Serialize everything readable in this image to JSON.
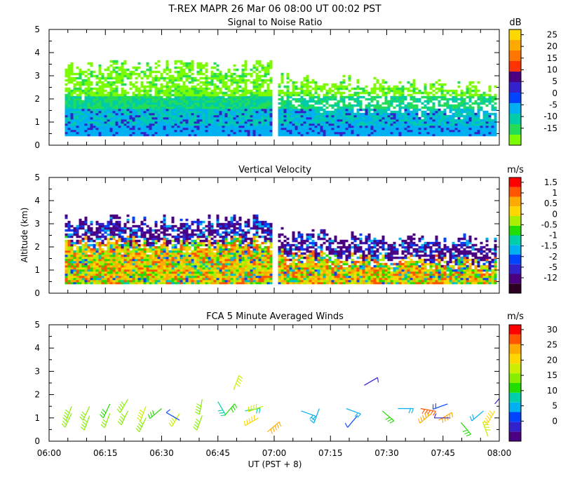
{
  "figure": {
    "title": "T-REX   MAPR 26 Mar 06   08:00 UT   00:02   PST",
    "xlabel": "UT  (PST + 8)",
    "ylabel": "Altitude (km)"
  },
  "colors": {
    "background": "#ffffff",
    "axis": "#000000"
  },
  "chart_data": [
    {
      "type": "heatmap",
      "title": "Signal to Noise Ratio",
      "unit": "dB",
      "ylim": [
        0,
        5
      ],
      "yticks": [
        "0",
        "1",
        "2",
        "3",
        "4",
        "5"
      ],
      "x_range": [
        "06:00",
        "08:00"
      ],
      "data_gap": [
        "06:59",
        "07:01"
      ],
      "colorbar": {
        "labels": [
          "-15",
          "-10",
          "-5",
          "0",
          "5",
          "10",
          "15",
          "20",
          "25"
        ],
        "colors": [
          "#7cfc00",
          "#22dd55",
          "#00ccaa",
          "#00b0f0",
          "#0044ff",
          "#3322cc",
          "#4b0082",
          "#ff3300",
          "#ff7700",
          "#ffaa00",
          "#ffd700"
        ]
      }
    },
    {
      "type": "heatmap",
      "title": "Vertical Velocity",
      "unit": "m/s",
      "ylim": [
        0,
        5
      ],
      "yticks": [
        "0",
        "1",
        "2",
        "3",
        "4",
        "5"
      ],
      "x_range": [
        "06:00",
        "08:00"
      ],
      "data_gap": [
        "06:59",
        "07:01"
      ],
      "colorbar": {
        "labels": [
          "-12",
          "-5",
          "-2",
          "-1.5",
          "-1",
          "-0.5",
          "0",
          "0.5",
          "1",
          "1.5"
        ],
        "colors": [
          "#2b0020",
          "#4b0082",
          "#3322cc",
          "#0044ff",
          "#00b0f0",
          "#00d0aa",
          "#22dd00",
          "#aaee00",
          "#ffd700",
          "#ffaa00",
          "#ff5500",
          "#ff0000"
        ]
      }
    },
    {
      "type": "scatter",
      "title": "FCA 5 Minute Averaged Winds",
      "unit": "m/s",
      "ylim": [
        0,
        5
      ],
      "yticks": [
        "0",
        "1",
        "2",
        "3",
        "4",
        "5"
      ],
      "xticks": [
        "06:00",
        "06:15",
        "06:30",
        "06:45",
        "07:00",
        "07:15",
        "07:30",
        "07:45",
        "08:00"
      ],
      "colorbar": {
        "labels": [
          "0",
          "5",
          "10",
          "15",
          "20",
          "25",
          "30"
        ],
        "colors": [
          "#4b0082",
          "#3322cc",
          "#0044ff",
          "#00b0f0",
          "#00d0aa",
          "#22dd00",
          "#88ee00",
          "#ccee00",
          "#ffd700",
          "#ffaa00",
          "#ff5500",
          "#ff0000"
        ]
      },
      "wind_barbs": [
        {
          "t": 6.1,
          "z": 1.5,
          "speed": 18,
          "dir": 200
        },
        {
          "t": 6.1,
          "z": 1.2,
          "speed": 17,
          "dir": 205
        },
        {
          "t": 6.18,
          "z": 1.5,
          "speed": 17,
          "dir": 205
        },
        {
          "t": 6.18,
          "z": 1.1,
          "speed": 18,
          "dir": 200
        },
        {
          "t": 6.27,
          "z": 1.6,
          "speed": 16,
          "dir": 205
        },
        {
          "t": 6.27,
          "z": 1.2,
          "speed": 17,
          "dir": 200
        },
        {
          "t": 6.35,
          "z": 1.8,
          "speed": 19,
          "dir": 210
        },
        {
          "t": 6.35,
          "z": 1.3,
          "speed": 18,
          "dir": 205
        },
        {
          "t": 6.43,
          "z": 1.5,
          "speed": 20,
          "dir": 200
        },
        {
          "t": 6.43,
          "z": 1.0,
          "speed": 19,
          "dir": 205
        },
        {
          "t": 6.5,
          "z": 1.4,
          "speed": 16,
          "dir": 230
        },
        {
          "t": 6.58,
          "z": 1.2,
          "speed": 21,
          "dir": 210
        },
        {
          "t": 6.58,
          "z": 0.9,
          "speed": 7,
          "dir": 300
        },
        {
          "t": 6.68,
          "z": 1.8,
          "speed": 18,
          "dir": 190
        },
        {
          "t": 6.68,
          "z": 1.1,
          "speed": 19,
          "dir": 200
        },
        {
          "t": 6.75,
          "z": 1.7,
          "speed": 13,
          "dir": 150
        },
        {
          "t": 6.78,
          "z": 1.1,
          "speed": 14,
          "dir": 40
        },
        {
          "t": 6.82,
          "z": 2.2,
          "speed": 21,
          "dir": 20
        },
        {
          "t": 6.87,
          "z": 1.3,
          "speed": 12,
          "dir": 80
        },
        {
          "t": 6.93,
          "z": 1.0,
          "speed": 24,
          "dir": 240
        },
        {
          "t": 6.95,
          "z": 1.5,
          "speed": 21,
          "dir": 250
        },
        {
          "t": 6.97,
          "z": 0.4,
          "speed": 26,
          "dir": 50
        },
        {
          "t": 7.12,
          "z": 1.3,
          "speed": 9,
          "dir": 110
        },
        {
          "t": 7.2,
          "z": 1.4,
          "speed": 10,
          "dir": 200
        },
        {
          "t": 7.32,
          "z": 1.4,
          "speed": 10,
          "dir": 110
        },
        {
          "t": 7.37,
          "z": 1.1,
          "speed": 7,
          "dir": 220
        },
        {
          "t": 7.4,
          "z": 2.4,
          "speed": 3,
          "dir": 60
        },
        {
          "t": 7.48,
          "z": 1.3,
          "speed": 16,
          "dir": 130
        },
        {
          "t": 7.55,
          "z": 1.4,
          "speed": 9,
          "dir": 90
        },
        {
          "t": 7.65,
          "z": 1.4,
          "speed": 28,
          "dir": 100
        },
        {
          "t": 7.7,
          "z": 1.2,
          "speed": 27,
          "dir": 230
        },
        {
          "t": 7.73,
          "z": 0.9,
          "speed": 27,
          "dir": 60
        },
        {
          "t": 7.77,
          "z": 1.6,
          "speed": 8,
          "dir": 250
        },
        {
          "t": 7.78,
          "z": 1.0,
          "speed": 4,
          "dir": 270
        },
        {
          "t": 7.83,
          "z": 0.8,
          "speed": 16,
          "dir": 140
        },
        {
          "t": 7.93,
          "z": 1.3,
          "speed": 9,
          "dir": 230
        },
        {
          "t": 7.95,
          "z": 0.2,
          "speed": 20,
          "dir": 340
        },
        {
          "t": 7.98,
          "z": 1.6,
          "speed": 3,
          "dir": 40
        },
        {
          "t": 7.98,
          "z": 1.3,
          "speed": 23,
          "dir": 210
        }
      ]
    }
  ]
}
